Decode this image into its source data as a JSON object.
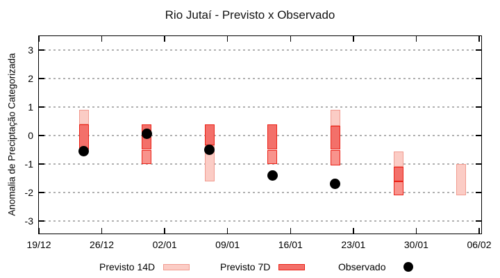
{
  "title": "Rio Jutaí - Previsto x Observado",
  "colors": {
    "light_fill": "#fbccc5",
    "light_border": "#f19a8f",
    "dark_fill": "#f3706a",
    "mid_fill": "#f8938c",
    "red_border": "#ea2015",
    "dot": "#000000",
    "grid": "#b0b0b0",
    "frame": "#000000"
  },
  "chart_data": {
    "type": "range-bar",
    "title": "Rio Jutaí - Previsto x Observado",
    "xlabel": "",
    "ylabel": "Anomalia de Preciptação Categorizada",
    "ylim": [
      -3.5,
      3.5
    ],
    "yticks": [
      3,
      2,
      1,
      0,
      -1,
      -2,
      -3
    ],
    "grid": "dashed horizontal gridlines at each integer y value",
    "legend_position": "bottom, outside plot",
    "xticks": [
      {
        "label": "19/12",
        "day": 0
      },
      {
        "label": "26/12",
        "day": 7
      },
      {
        "label": "02/01",
        "day": 14
      },
      {
        "label": "09/01",
        "day": 21
      },
      {
        "label": "16/01",
        "day": 28
      },
      {
        "label": "23/01",
        "day": 35
      },
      {
        "label": "30/01",
        "day": 42
      },
      {
        "label": "06/02",
        "day": 49
      }
    ],
    "legend": [
      {
        "label": "Previsto 14D",
        "swatch": "light"
      },
      {
        "label": "Previsto 7D",
        "swatch": "dark"
      },
      {
        "label": "Observado",
        "swatch": "dot"
      }
    ],
    "clusters": [
      {
        "date": "24/12",
        "day": 5,
        "segments": [
          {
            "shade": "light",
            "from": 0.4,
            "to": 0.9
          },
          {
            "shade": "dark",
            "from": -0.5,
            "to": 0.4
          }
        ],
        "observed": -0.55
      },
      {
        "date": "31/12",
        "day": 12,
        "segments": [
          {
            "shade": "dark",
            "from": -0.5,
            "to": 0.4
          },
          {
            "shade": "mid",
            "from": -1.0,
            "to": -0.5
          }
        ],
        "observed": 0.05
      },
      {
        "date": "07/01",
        "day": 19,
        "segments": [
          {
            "shade": "dark",
            "from": -0.35,
            "to": 0.4
          },
          {
            "shade": "light",
            "from": -1.6,
            "to": -0.35
          }
        ],
        "observed": -0.5
      },
      {
        "date": "14/01",
        "day": 26,
        "segments": [
          {
            "shade": "dark",
            "from": -0.5,
            "to": 0.4
          },
          {
            "shade": "mid",
            "from": -1.0,
            "to": -0.5
          }
        ],
        "observed": -1.4
      },
      {
        "date": "21/01",
        "day": 33,
        "segments": [
          {
            "shade": "light",
            "from": 0.35,
            "to": 0.9
          },
          {
            "shade": "dark",
            "from": -0.5,
            "to": 0.35
          },
          {
            "shade": "mid",
            "from": -1.05,
            "to": -0.5
          }
        ],
        "observed": -1.7
      },
      {
        "date": "28/01",
        "day": 40,
        "segments": [
          {
            "shade": "light",
            "from": -1.1,
            "to": -0.55
          },
          {
            "shade": "dark",
            "from": -1.6,
            "to": -1.1
          },
          {
            "shade": "mid",
            "from": -2.1,
            "to": -1.6
          }
        ],
        "observed": null
      },
      {
        "date": "04/02",
        "day": 47,
        "segments": [
          {
            "shade": "light",
            "from": -2.1,
            "to": -1.0
          }
        ],
        "observed": null
      }
    ]
  }
}
